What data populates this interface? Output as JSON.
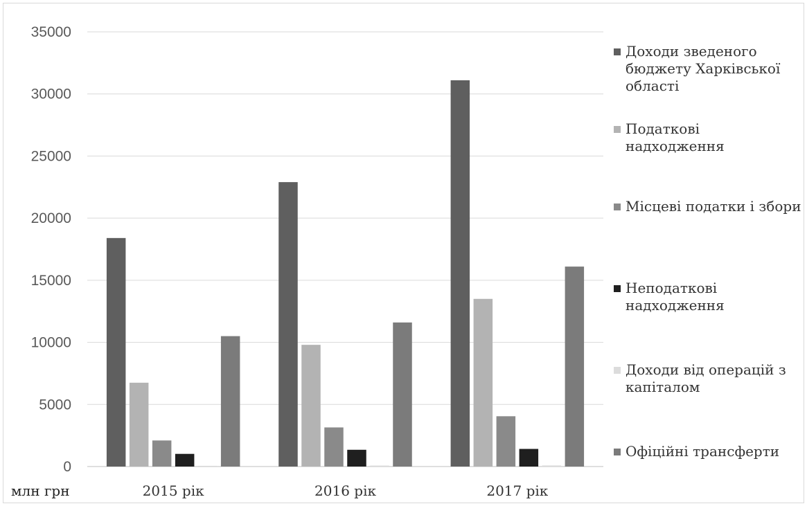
{
  "chart_data": {
    "type": "bar",
    "title": "",
    "xlabel": "",
    "ylabel": "млн грн",
    "ylim": [
      0,
      35000
    ],
    "yticks": [
      0,
      5000,
      10000,
      15000,
      20000,
      25000,
      30000,
      35000
    ],
    "grid": true,
    "legend_position": "right",
    "categories": [
      "2015 рік",
      "2016 рік",
      "2017 рік"
    ],
    "series": [
      {
        "name": "Доходи зведеного бюджету Харківської області",
        "color": "#5f5f5f",
        "values": [
          18400,
          22900,
          31100
        ]
      },
      {
        "name": "Податкові надходження",
        "color": "#b3b3b3",
        "values": [
          6750,
          9800,
          13500
        ]
      },
      {
        "name": "Місцеві податки і збори",
        "color": "#8a8a8a",
        "values": [
          2100,
          3150,
          4050
        ]
      },
      {
        "name": "Неподаткові надходження",
        "color": "#1f1f1f",
        "values": [
          1020,
          1350,
          1420
        ]
      },
      {
        "name": "Доходи від операцій з капіталом",
        "color": "#dcdcdc",
        "values": [
          60,
          80,
          90
        ]
      },
      {
        "name": "Офіційні трансферти",
        "color": "#7b7b7b",
        "values": [
          10500,
          11600,
          16100
        ]
      }
    ]
  }
}
